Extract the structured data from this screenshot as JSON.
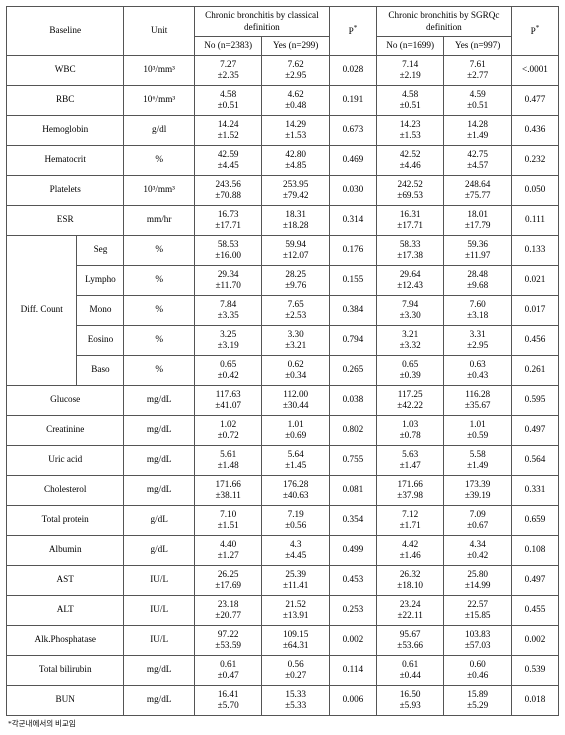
{
  "headers": {
    "baseline": "Baseline",
    "unit": "Unit",
    "cb_classical": "Chronic bronchitis by classical definition",
    "cb_sgrqc": "Chronic bronchitis by SGRQc definition",
    "p": "P",
    "p_sup": "*",
    "no1": "No (n=2383)",
    "yes1": "Yes (n=299)",
    "no2": "No (n=1699)",
    "yes2": "Yes (n=997)"
  },
  "diff_count_label": "Diff. Count",
  "footnote": "*각군내에서의 비교임",
  "rows": [
    {
      "name": "WBC",
      "unit": "10³/mm³",
      "c1no": "7.27 ±2.35",
      "c1yes": "7.62 ±2.95",
      "p1": "0.028",
      "c2no": "7.14 ±2.19",
      "c2yes": "7.61 ±2.77",
      "p2": "<.0001"
    },
    {
      "name": "RBC",
      "unit": "10⁶/mm³",
      "c1no": "4.58 ±0.51",
      "c1yes": "4.62 ±0.48",
      "p1": "0.191",
      "c2no": "4.58 ±0.51",
      "c2yes": "4.59 ±0.51",
      "p2": "0.477"
    },
    {
      "name": "Hemoglobin",
      "unit": "g/dl",
      "c1no": "14.24 ±1.52",
      "c1yes": "14.29 ±1.53",
      "p1": "0.673",
      "c2no": "14.23 ±1.53",
      "c2yes": "14.28 ±1.49",
      "p2": "0.436"
    },
    {
      "name": "Hematocrit",
      "unit": "%",
      "c1no": "42.59 ±4.45",
      "c1yes": "42.80 ±4.85",
      "p1": "0.469",
      "c2no": "42.52 ±4.46",
      "c2yes": "42.75 ±4.57",
      "p2": "0.232"
    },
    {
      "name": "Platelets",
      "unit": "10³/mm³",
      "c1no": "243.56 ±70.88",
      "c1yes": "253.95 ±79.42",
      "p1": "0.030",
      "c2no": "242.52 ±69.53",
      "c2yes": "248.64 ±75.77",
      "p2": "0.050"
    },
    {
      "name": "ESR",
      "unit": "mm/hr",
      "c1no": "16.73 ±17.71",
      "c1yes": "18.31 ±18.28",
      "p1": "0.314",
      "c2no": "16.31 ±17.71",
      "c2yes": "18.01 ±17.79",
      "p2": "0.111"
    }
  ],
  "diff_rows": [
    {
      "name": "Seg",
      "unit": "%",
      "c1no": "58.53 ±16.00",
      "c1yes": "59.94 ±12.07",
      "p1": "0.176",
      "c2no": "58.33 ±17.38",
      "c2yes": "59.36 ±11.97",
      "p2": "0.133"
    },
    {
      "name": "Lympho",
      "unit": "%",
      "c1no": "29.34 ±11.70",
      "c1yes": "28.25 ±9.76",
      "p1": "0.155",
      "c2no": "29.64 ±12.43",
      "c2yes": "28.48 ±9.68",
      "p2": "0.021"
    },
    {
      "name": "Mono",
      "unit": "%",
      "c1no": "7.84 ±3.35",
      "c1yes": "7.65 ±2.53",
      "p1": "0.384",
      "c2no": "7.94 ±3.30",
      "c2yes": "7.60 ±3.18",
      "p2": "0.017"
    },
    {
      "name": "Eosino",
      "unit": "%",
      "c1no": "3.25 ±3.19",
      "c1yes": "3.30 ±3.21",
      "p1": "0.794",
      "c2no": "3.21 ±3.32",
      "c2yes": "3.31 ±2.95",
      "p2": "0.456"
    },
    {
      "name": "Baso",
      "unit": "%",
      "c1no": "0.65 ±0.42",
      "c1yes": "0.62 ±0.34",
      "p1": "0.265",
      "c2no": "0.65 ±0.39",
      "c2yes": "0.63 ±0.43",
      "p2": "0.261"
    }
  ],
  "rows2": [
    {
      "name": "Glucose",
      "unit": "mg/dL",
      "c1no": "117.63 ±41.07",
      "c1yes": "112.00 ±30.44",
      "p1": "0.038",
      "c2no": "117.25 ±42.22",
      "c2yes": "116.28 ±35.67",
      "p2": "0.595"
    },
    {
      "name": "Creatinine",
      "unit": "mg/dL",
      "c1no": "1.02 ±0.72",
      "c1yes": "1.01 ±0.69",
      "p1": "0.802",
      "c2no": "1.03 ±0.78",
      "c2yes": "1.01 ±0.59",
      "p2": "0.497"
    },
    {
      "name": "Uric acid",
      "unit": "mg/dL",
      "c1no": "5.61 ±1.48",
      "c1yes": "5.64 ±1.45",
      "p1": "0.755",
      "c2no": "5.63 ±1.47",
      "c2yes": "5.58 ±1.49",
      "p2": "0.564"
    },
    {
      "name": "Cholesterol",
      "unit": "mg/dL",
      "c1no": "171.66 ±38.11",
      "c1yes": "176.28 ±40.63",
      "p1": "0.081",
      "c2no": "171.66 ±37.98",
      "c2yes": "173.39 ±39.19",
      "p2": "0.331"
    },
    {
      "name": "Total protein",
      "unit": "g/dL",
      "c1no": "7.10 ±1.51",
      "c1yes": "7.19 ±0.56",
      "p1": "0.354",
      "c2no": "7.12 ±1.71",
      "c2yes": "7.09 ±0.67",
      "p2": "0.659"
    },
    {
      "name": "Albumin",
      "unit": "g/dL",
      "c1no": "4.40 ±1.27",
      "c1yes": "4.3 ±4.45",
      "p1": "0.499",
      "c2no": "4.42 ±1.46",
      "c2yes": "4.34 ±0.42",
      "p2": "0.108"
    },
    {
      "name": "AST",
      "unit": "IU/L",
      "c1no": "26.25 ±17.69",
      "c1yes": "25.39 ±11.41",
      "p1": "0.453",
      "c2no": "26.32 ±18.10",
      "c2yes": "25.80 ±14.99",
      "p2": "0.497"
    },
    {
      "name": "ALT",
      "unit": "IU/L",
      "c1no": "23.18 ±20.77",
      "c1yes": "21.52 ±13.91",
      "p1": "0.253",
      "c2no": "23.24 ±22.11",
      "c2yes": "22.57 ±15.85",
      "p2": "0.455"
    },
    {
      "name": "Alk.Phosphatase",
      "unit": "IU/L",
      "c1no": "97.22 ±53.59",
      "c1yes": "109.15 ±64.31",
      "p1": "0.002",
      "c2no": "95.67 ±53.66",
      "c2yes": "103.83 ±57.03",
      "p2": "0.002"
    },
    {
      "name": "Total bilirubin",
      "unit": "mg/dL",
      "c1no": "0.61 ±0.47",
      "c1yes": "0.56 ±0.27",
      "p1": "0.114",
      "c2no": "0.61 ±0.44",
      "c2yes": "0.60 ±0.46",
      "p2": "0.539"
    },
    {
      "name": "BUN",
      "unit": "mg/dL",
      "c1no": "16.41 ±5.70",
      "c1yes": "15.33 ±5.33",
      "p1": "0.006",
      "c2no": "16.50 ±5.93",
      "c2yes": "15.89 ±5.29",
      "p2": "0.018"
    }
  ]
}
